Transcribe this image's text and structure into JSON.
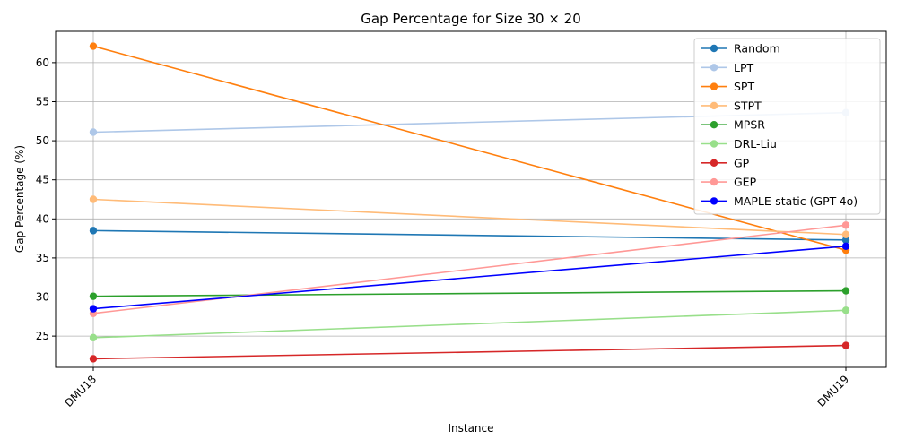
{
  "chart_data": {
    "type": "line",
    "title": "Gap Percentage for Size 30 × 20",
    "xlabel": "Instance",
    "ylabel": "Gap Percentage (%)",
    "categories": [
      "DMU18",
      "DMU19"
    ],
    "ylim": [
      21,
      64
    ],
    "yticks": [
      25,
      30,
      35,
      40,
      45,
      50,
      55,
      60
    ],
    "grid": true,
    "legend_position": "top-right",
    "series": [
      {
        "name": "Random",
        "color": "#1f77b4",
        "values": [
          38.5,
          37.3
        ]
      },
      {
        "name": "LPT",
        "color": "#aec7e8",
        "values": [
          51.1,
          53.6
        ]
      },
      {
        "name": "SPT",
        "color": "#ff7f0e",
        "values": [
          62.1,
          36.0
        ]
      },
      {
        "name": "STPT",
        "color": "#ffbb78",
        "values": [
          42.5,
          38.0
        ]
      },
      {
        "name": "MPSR",
        "color": "#2ca02c",
        "values": [
          30.1,
          30.8
        ]
      },
      {
        "name": "DRL-Liu",
        "color": "#98df8a",
        "values": [
          24.8,
          28.3
        ]
      },
      {
        "name": "GP",
        "color": "#d62728",
        "values": [
          22.1,
          23.8
        ]
      },
      {
        "name": "GEP",
        "color": "#ff9896",
        "values": [
          27.9,
          39.2
        ]
      },
      {
        "name": "MAPLE-static (GPT-4o)",
        "color": "#0000ff",
        "values": [
          28.5,
          36.5
        ]
      }
    ]
  }
}
